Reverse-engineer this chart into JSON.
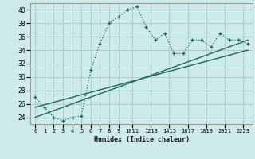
{
  "xlabel": "Humidex (Indice chaleur)",
  "background_color": "#ceeaea",
  "grid_color": "#aacece",
  "line_color": "#1a6b5a",
  "xlim": [
    -0.5,
    23.5
  ],
  "ylim": [
    23,
    41
  ],
  "yticks": [
    24,
    26,
    28,
    30,
    32,
    34,
    36,
    38,
    40
  ],
  "xtick_labels": [
    "0",
    "1",
    "2",
    "3",
    "4",
    "5",
    "6",
    "7",
    "8",
    "9",
    "1011",
    "1213",
    "1415",
    "1617",
    "1819",
    "2021",
    "2223"
  ],
  "xtick_positions": [
    0,
    1,
    2,
    3,
    4,
    5,
    6,
    7,
    8,
    9,
    10.5,
    12.5,
    14.5,
    16.5,
    18.5,
    20.5,
    22.5
  ],
  "main_x": [
    0,
    1,
    2,
    3,
    4,
    5,
    6,
    7,
    8,
    9,
    10,
    11,
    12,
    13,
    14,
    15,
    16,
    17,
    18,
    19,
    20,
    21,
    22,
    23
  ],
  "main_y": [
    27.0,
    25.5,
    24.0,
    23.5,
    24.0,
    24.2,
    31.0,
    35.0,
    38.0,
    39.0,
    40.0,
    40.5,
    37.5,
    35.5,
    36.5,
    33.5,
    33.5,
    35.5,
    35.5,
    34.5,
    36.5,
    35.5,
    35.5,
    35.0
  ],
  "line2_x": [
    0,
    23
  ],
  "line2_y": [
    24.0,
    35.5
  ],
  "line3_x": [
    0,
    23
  ],
  "line3_y": [
    25.5,
    34.0
  ]
}
